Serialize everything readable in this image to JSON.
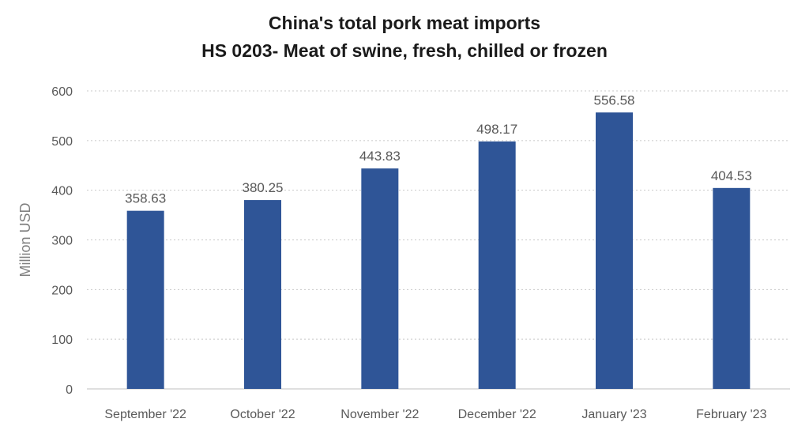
{
  "chart_data": {
    "type": "bar",
    "title": "China's total pork meat imports",
    "subtitle": "HS 0203- Meat of swine, fresh, chilled or frozen",
    "xlabel": "",
    "ylabel": "Million USD",
    "categories": [
      "September '22",
      "October '22",
      "November '22",
      "December '22",
      "January '23",
      "February '23"
    ],
    "values": [
      358.63,
      380.25,
      443.83,
      498.17,
      556.58,
      404.53
    ],
    "data_labels": [
      "358.63",
      "380.25",
      "443.83",
      "498.17",
      "556.58",
      "404.53"
    ],
    "ylim": [
      0,
      600
    ],
    "yticks": [
      0,
      100,
      200,
      300,
      400,
      500,
      600
    ],
    "grid": true,
    "legend": "none",
    "bar_color": "#2F5597"
  }
}
